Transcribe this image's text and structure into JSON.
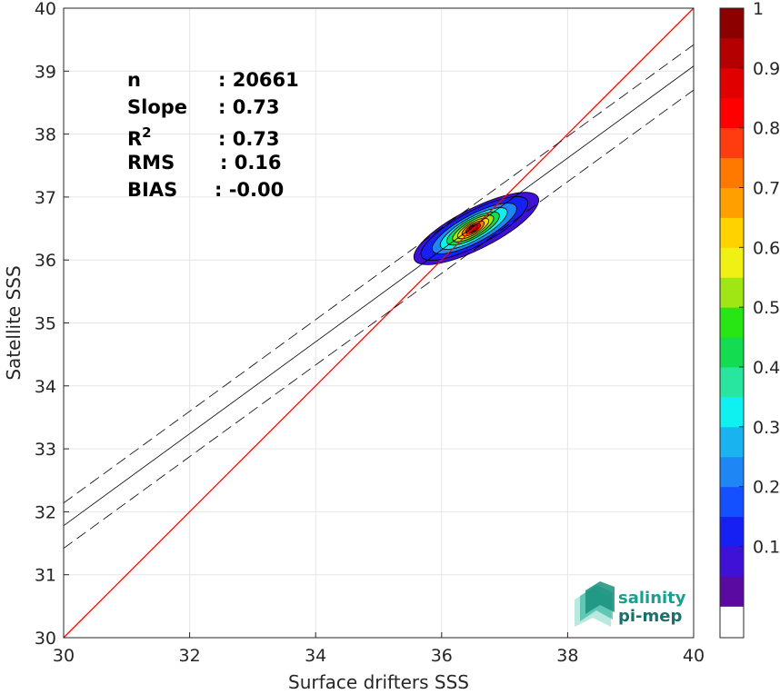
{
  "chart_data": {
    "type": "scatter",
    "subtype": "density-contour",
    "xlabel": "Surface drifters SSS",
    "ylabel": "Satellite SSS",
    "xlim": [
      30,
      40
    ],
    "ylim": [
      30,
      40
    ],
    "xticks": [
      "30",
      "32",
      "34",
      "36",
      "38",
      "40"
    ],
    "yticks": [
      "30",
      "31",
      "32",
      "33",
      "34",
      "35",
      "36",
      "37",
      "38",
      "39",
      "40"
    ],
    "grid": true,
    "stats": [
      {
        "label": "n",
        "value": ": 20661"
      },
      {
        "label": "Slope",
        "value": ": 0.73"
      },
      {
        "label": "R",
        "sup": "2",
        "value": ": 0.73"
      },
      {
        "label": "RMS",
        "value": ": 0.16"
      },
      {
        "label": "BIAS",
        "value": ": -0.00"
      }
    ],
    "one_to_one_line": {
      "color": "#ff0000",
      "x": [
        30,
        40
      ],
      "y": [
        30,
        40
      ]
    },
    "regression_line": {
      "x": [
        30,
        40
      ],
      "y": [
        31.78,
        39.08
      ]
    },
    "confidence_lines": [
      {
        "x": [
          30,
          40
        ],
        "y": [
          32.14,
          39.42
        ]
      },
      {
        "x": [
          30,
          40
        ],
        "y": [
          31.42,
          38.7
        ]
      }
    ],
    "density_center": {
      "x": 36.5,
      "y": 36.5
    },
    "density_contours": [
      {
        "level": 0.05,
        "rx": 1.1,
        "ry": 0.32,
        "angle_deg": 27,
        "cx": 36.55,
        "cy": 36.5
      },
      {
        "level": 0.1,
        "rx": 0.95,
        "ry": 0.27,
        "angle_deg": 28,
        "cx": 36.52,
        "cy": 36.5
      },
      {
        "level": 0.2,
        "rx": 0.75,
        "ry": 0.22,
        "angle_deg": 28,
        "cx": 36.52,
        "cy": 36.5
      },
      {
        "level": 0.3,
        "rx": 0.6,
        "ry": 0.18,
        "angle_deg": 29,
        "cx": 36.51,
        "cy": 36.5
      },
      {
        "level": 0.4,
        "rx": 0.47,
        "ry": 0.15,
        "angle_deg": 29,
        "cx": 36.5,
        "cy": 36.5
      },
      {
        "level": 0.5,
        "rx": 0.37,
        "ry": 0.12,
        "angle_deg": 30,
        "cx": 36.5,
        "cy": 36.5
      },
      {
        "level": 0.6,
        "rx": 0.28,
        "ry": 0.095,
        "angle_deg": 30,
        "cx": 36.5,
        "cy": 36.5
      },
      {
        "level": 0.7,
        "rx": 0.2,
        "ry": 0.075,
        "angle_deg": 30,
        "cx": 36.5,
        "cy": 36.5
      },
      {
        "level": 0.8,
        "rx": 0.13,
        "ry": 0.055,
        "angle_deg": 30,
        "cx": 36.5,
        "cy": 36.5
      },
      {
        "level": 0.9,
        "rx": 0.08,
        "ry": 0.04,
        "angle_deg": 30,
        "cx": 36.5,
        "cy": 36.5
      }
    ],
    "colorbar": {
      "colors": [
        "#5a0aa0",
        "#3f10d6",
        "#1620f2",
        "#1450ff",
        "#1e87f5",
        "#19b4f0",
        "#0ff0f0",
        "#28e6a0",
        "#14dc50",
        "#28e614",
        "#a0e614",
        "#f0f014",
        "#ffd200",
        "#ffa000",
        "#ff7800",
        "#ff3c0f",
        "#ff0000",
        "#e10000",
        "#b40000",
        "#8c0000"
      ],
      "ticks": [
        "0.1",
        "0.2",
        "0.3",
        "0.4",
        "0.5",
        "0.6",
        "0.7",
        "0.8",
        "0.9",
        "1"
      ],
      "tick_values": [
        0.1,
        0.2,
        0.3,
        0.4,
        0.5,
        0.6,
        0.7,
        0.8,
        0.9,
        1.0
      ]
    }
  },
  "logo": {
    "line1": "salinity",
    "line2": "pi-mep"
  }
}
